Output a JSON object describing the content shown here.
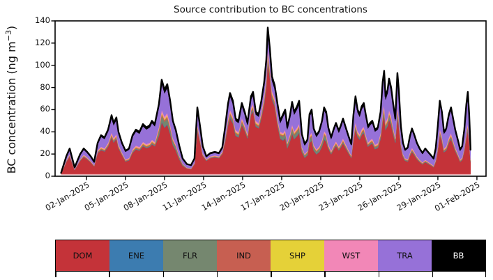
{
  "chart_data": {
    "type": "area",
    "stacked": true,
    "title": "Source contribution to BC concentrations",
    "ylabel_parts": {
      "prefix": "BC concentration (ng m",
      "sup": "−3",
      "suffix": ")"
    },
    "ylim": [
      0,
      140
    ],
    "yticks": [
      0,
      20,
      40,
      60,
      80,
      100,
      120,
      140
    ],
    "grid": false,
    "legend_position": "bottom-strip",
    "x_tick_rotation_deg": 30,
    "x_domain_days": [
      -1.41,
      31.7
    ],
    "x_ticks": [
      {
        "day": 1,
        "label": "02-Jan-2025"
      },
      {
        "day": 4,
        "label": "05-Jan-2025"
      },
      {
        "day": 7,
        "label": "08-Jan-2025"
      },
      {
        "day": 10,
        "label": "11-Jan-2025"
      },
      {
        "day": 13,
        "label": "14-Jan-2025"
      },
      {
        "day": 16,
        "label": "17-Jan-2025"
      },
      {
        "day": 19,
        "label": "20-Jan-2025"
      },
      {
        "day": 22,
        "label": "23-Jan-2025"
      },
      {
        "day": 25,
        "label": "26-Jan-2025"
      },
      {
        "day": 28,
        "label": "29-Jan-2025"
      },
      {
        "day": 31,
        "label": "01-Feb-2025"
      }
    ],
    "sources": [
      "DOM",
      "ENE",
      "FLR",
      "IND",
      "SHP",
      "WST",
      "TRA",
      "BB"
    ],
    "colors": {
      "DOM": "#c43339",
      "ENE": "#3c7cb0",
      "FLR": "#75876f",
      "IND": "#c75f51",
      "SHP": "#e5d138",
      "WST": "#f287b7",
      "TRA": "#9671d8",
      "BB": "#000000"
    },
    "total_line_color": "#000000",
    "baseline_edge_color": "#eba6aa",
    "legend": [
      {
        "label": "DOM",
        "color": "#c43339",
        "text": "#111111"
      },
      {
        "label": "ENE",
        "color": "#3c7cb0",
        "text": "#111111"
      },
      {
        "label": "FLR",
        "color": "#75876f",
        "text": "#111111"
      },
      {
        "label": "IND",
        "color": "#c75f51",
        "text": "#111111"
      },
      {
        "label": "SHP",
        "color": "#e5d138",
        "text": "#111111"
      },
      {
        "label": "WST",
        "color": "#f287b7",
        "text": "#111111"
      },
      {
        "label": "TRA",
        "color": "#9671d8",
        "text": "#111111"
      },
      {
        "label": "BB",
        "color": "#000000",
        "text": "#ffffff"
      }
    ],
    "x_days": [
      -0.95,
      -0.55,
      -0.29,
      0.09,
      0.52,
      0.79,
      1.05,
      1.32,
      1.59,
      1.86,
      2.12,
      2.39,
      2.66,
      2.93,
      3.09,
      3.3,
      3.46,
      3.73,
      4.0,
      4.27,
      4.54,
      4.8,
      5.07,
      5.34,
      5.61,
      5.87,
      6.03,
      6.25,
      6.57,
      6.78,
      7.0,
      7.21,
      7.43,
      7.64,
      7.86,
      8.12,
      8.39,
      8.71,
      9.03,
      9.3,
      9.52,
      9.73,
      9.94,
      10.21,
      10.53,
      10.86,
      11.18,
      11.44,
      11.66,
      11.87,
      12.03,
      12.25,
      12.46,
      12.68,
      12.94,
      13.16,
      13.37,
      13.64,
      13.8,
      14.01,
      14.23,
      14.44,
      14.66,
      14.82,
      14.93,
      15.09,
      15.25,
      15.46,
      15.68,
      15.89,
      16.11,
      16.27,
      16.43,
      16.64,
      16.8,
      16.96,
      17.18,
      17.34,
      17.55,
      17.77,
      17.98,
      18.14,
      18.3,
      18.46,
      18.67,
      18.89,
      19.1,
      19.26,
      19.42,
      19.58,
      19.8,
      20.01,
      20.17,
      20.39,
      20.55,
      20.71,
      20.92,
      21.14,
      21.35,
      21.51,
      21.67,
      21.83,
      21.99,
      22.15,
      22.31,
      22.47,
      22.63,
      22.79,
      22.96,
      23.17,
      23.39,
      23.6,
      23.76,
      23.87,
      23.98,
      24.14,
      24.25,
      24.41,
      24.57,
      24.73,
      24.89,
      25.0,
      25.16,
      25.32,
      25.48,
      25.69,
      25.85,
      26.01,
      26.17,
      26.39,
      26.6,
      26.82,
      27.03,
      27.24,
      27.46,
      27.67,
      27.83,
      27.99,
      28.15,
      28.31,
      28.47,
      28.64,
      28.85,
      29.01,
      29.17,
      29.33,
      29.55,
      29.71,
      29.87,
      30.03,
      30.19,
      30.3,
      30.41,
      30.51
    ],
    "total_bc": [
      3,
      18,
      25,
      8,
      20,
      25,
      22,
      18,
      13,
      30,
      37,
      35,
      42,
      55,
      48,
      53,
      40,
      30,
      23,
      25,
      37,
      42,
      40,
      47,
      44,
      46,
      50,
      47,
      65,
      87,
      78,
      83,
      68,
      50,
      42,
      28,
      16,
      11,
      10,
      16,
      62,
      45,
      27,
      18,
      21,
      22,
      21,
      26,
      45,
      65,
      75,
      68,
      52,
      50,
      66,
      58,
      48,
      72,
      76,
      58,
      56,
      68,
      85,
      105,
      134,
      115,
      90,
      82,
      65,
      50,
      56,
      60,
      44,
      55,
      67,
      58,
      63,
      68,
      38,
      29,
      33,
      56,
      60,
      43,
      37,
      41,
      50,
      62,
      58,
      44,
      35,
      43,
      48,
      41,
      46,
      52,
      44,
      36,
      29,
      55,
      72,
      60,
      56,
      63,
      66,
      55,
      45,
      48,
      50,
      42,
      44,
      58,
      85,
      95,
      72,
      78,
      88,
      80,
      65,
      52,
      93,
      78,
      45,
      30,
      24,
      26,
      36,
      43,
      38,
      30,
      25,
      21,
      25,
      22,
      19,
      16,
      25,
      45,
      68,
      58,
      40,
      43,
      56,
      62,
      52,
      42,
      32,
      24,
      27,
      42,
      65,
      76,
      55,
      24
    ],
    "fractions": {
      "note": "per-source share of total BC at each time; DOM is the remainder",
      "constant": {
        "ENE": 0.008,
        "IND": 0.022,
        "SHP": 0.013,
        "WST": 0.026,
        "BB": 0.04
      },
      "TRA_segments": [
        [
          -1.0,
          0.2,
          0.16
        ],
        [
          0.2,
          2.0,
          0.18
        ],
        [
          2.0,
          4.0,
          0.24
        ],
        [
          4.0,
          6.4,
          0.3
        ],
        [
          6.4,
          8.2,
          0.27
        ],
        [
          8.2,
          9.2,
          0.24
        ],
        [
          9.2,
          10.0,
          0.2
        ],
        [
          10.0,
          11.5,
          0.1
        ],
        [
          11.5,
          13.5,
          0.16
        ],
        [
          13.5,
          15.6,
          0.1
        ],
        [
          15.6,
          16.1,
          0.16
        ],
        [
          16.1,
          18.0,
          0.26
        ],
        [
          18.0,
          21.4,
          0.3
        ],
        [
          21.4,
          23.4,
          0.28
        ],
        [
          23.4,
          25.5,
          0.28
        ],
        [
          25.5,
          28.0,
          0.36
        ],
        [
          28.0,
          31.0,
          0.33
        ]
      ],
      "FLR_segments": [
        [
          -1.0,
          6.4,
          0.015
        ],
        [
          6.4,
          8.5,
          0.06
        ],
        [
          8.5,
          11.5,
          0.015
        ],
        [
          11.5,
          13.0,
          0.03
        ],
        [
          13.0,
          15.8,
          0.02
        ],
        [
          15.8,
          19.5,
          0.055
        ],
        [
          19.5,
          23.0,
          0.02
        ],
        [
          23.0,
          25.5,
          0.03
        ],
        [
          25.5,
          31.0,
          0.02
        ]
      ],
      "DOM": "remainder"
    }
  }
}
